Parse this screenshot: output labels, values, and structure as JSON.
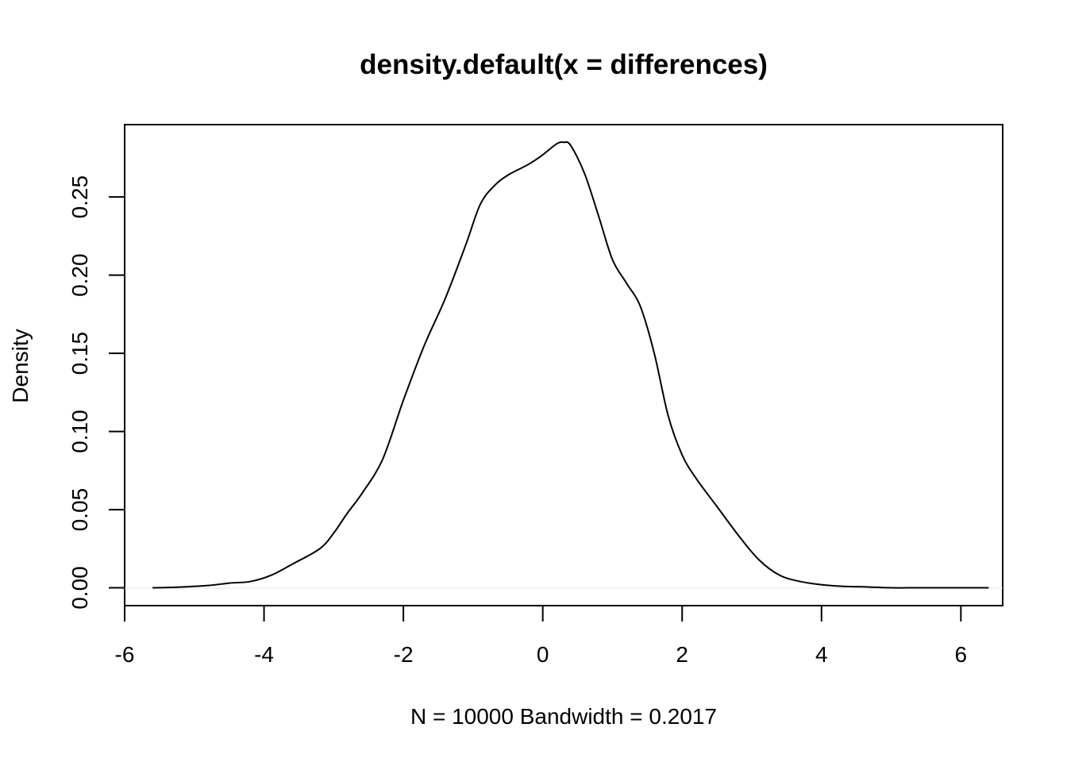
{
  "chart_data": {
    "type": "line",
    "title": "density.default(x = differences)",
    "xlabel": "N = 10000   Bandwidth = 0.2017",
    "ylabel": "Density",
    "xlim": [
      -6,
      6.6
    ],
    "ylim": [
      -0.0114,
      0.2963
    ],
    "x_ticks": [
      -6,
      -4,
      -2,
      0,
      2,
      4,
      6
    ],
    "x_tick_labels": [
      "-6",
      "-4",
      "-2",
      "0",
      "2",
      "4",
      "6"
    ],
    "y_ticks": [
      0,
      0.05,
      0.1,
      0.15,
      0.2,
      0.25
    ],
    "y_tick_labels": [
      "0.00",
      "0.05",
      "0.10",
      "0.15",
      "0.20",
      "0.25"
    ],
    "grid": false,
    "series": [
      {
        "x": [
          -5.6,
          -5.2,
          -4.8,
          -4.5,
          -4.2,
          -3.9,
          -3.6,
          -3.2,
          -3.0,
          -2.8,
          -2.6,
          -2.3,
          -2.0,
          -1.7,
          -1.4,
          -1.1,
          -0.9,
          -0.7,
          -0.5,
          -0.2,
          0.0,
          0.2,
          0.3,
          0.4,
          0.6,
          0.8,
          1.0,
          1.2,
          1.4,
          1.6,
          1.8,
          2.0,
          2.2,
          2.5,
          2.8,
          3.1,
          3.4,
          3.7,
          4.0,
          4.3,
          4.7,
          5.0,
          5.4,
          5.8,
          6.2,
          6.4
        ],
        "y": [
          0.0,
          0.0005,
          0.0015,
          0.003,
          0.004,
          0.008,
          0.015,
          0.025,
          0.035,
          0.048,
          0.06,
          0.082,
          0.12,
          0.155,
          0.185,
          0.22,
          0.245,
          0.257,
          0.264,
          0.271,
          0.277,
          0.284,
          0.285,
          0.283,
          0.265,
          0.238,
          0.21,
          0.195,
          0.18,
          0.15,
          0.11,
          0.085,
          0.07,
          0.052,
          0.034,
          0.018,
          0.008,
          0.004,
          0.002,
          0.001,
          0.0005,
          0.0,
          0.0,
          0.0,
          0.0,
          0.0
        ]
      }
    ]
  }
}
